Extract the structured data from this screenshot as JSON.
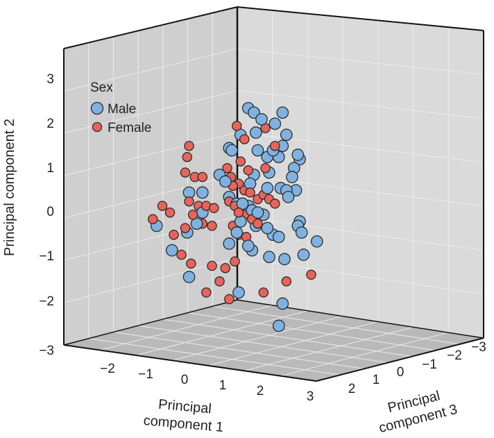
{
  "chart_data": {
    "type": "scatter",
    "projection": "3d",
    "colors": {
      "Male": "#7fb2e0",
      "Female": "#e8645a",
      "marker_edge": "#2b2b2b"
    },
    "axes": {
      "x": {
        "label": "Principal component 1",
        "label_line1": "Principal",
        "label_line2": "component 1",
        "range": [
          -3,
          3
        ],
        "ticks": [
          "−2",
          "−1",
          "0",
          "1",
          "2",
          "3"
        ]
      },
      "y": {
        "label": "Principal component 2",
        "range": [
          -3,
          3.5
        ],
        "ticks": [
          "3",
          "2",
          "1",
          "0",
          "−1",
          "−2",
          "−3"
        ]
      },
      "z": {
        "label": "Principal component 3",
        "label_line1": "Principal",
        "label_line2": "component 3",
        "range": [
          -3,
          3
        ],
        "ticks": [
          "2",
          "1",
          "0",
          "−1",
          "−2",
          "−3"
        ]
      }
    },
    "legend": {
      "title": "Sex",
      "entries": [
        "Male",
        "Female"
      ],
      "position": "top-left"
    },
    "series": [
      {
        "name": "Male",
        "points": [
          [
            1.05,
            2.3
          ],
          [
            1.2,
            2.2
          ],
          [
            1.4,
            2.05
          ],
          [
            1.25,
            1.75
          ],
          [
            1.95,
            2.2
          ],
          [
            2.05,
            1.7
          ],
          [
            1.75,
            1.95
          ],
          [
            0.85,
            1.7
          ],
          [
            0.55,
            1.4
          ],
          [
            0.62,
            1.35
          ],
          [
            1.3,
            1.35
          ],
          [
            1.55,
            1.2
          ],
          [
            1.7,
            1.35
          ],
          [
            1.95,
            1.45
          ],
          [
            1.85,
            1.2
          ],
          [
            2.35,
            1.25
          ],
          [
            2.4,
            1.15
          ],
          [
            2.25,
            0.95
          ],
          [
            2.2,
            0.75
          ],
          [
            1.6,
            0.85
          ],
          [
            1.2,
            0.8
          ],
          [
            1.1,
            0.6
          ],
          [
            1.55,
            0.5
          ],
          [
            1.9,
            0.5
          ],
          [
            2.05,
            0.45
          ],
          [
            2.1,
            0.3
          ],
          [
            2.3,
            0.45
          ],
          [
            0.3,
            0.8
          ],
          [
            0.45,
            0.65
          ],
          [
            0.55,
            0.3
          ],
          [
            0.75,
            0.15
          ],
          [
            0.9,
            0.15
          ],
          [
            1.05,
            0.1
          ],
          [
            1.15,
            0.0
          ],
          [
            1.3,
            -0.05
          ],
          [
            1.45,
            -0.1
          ],
          [
            1.25,
            -0.35
          ],
          [
            1.55,
            -0.4
          ],
          [
            1.7,
            -0.55
          ],
          [
            1.85,
            -0.6
          ],
          [
            2.35,
            -0.35
          ],
          [
            2.45,
            -0.5
          ],
          [
            2.4,
            -0.25
          ],
          [
            2.85,
            -0.7
          ],
          [
            2.5,
            -1.0
          ],
          [
            2.0,
            -1.1
          ],
          [
            1.6,
            -1.05
          ],
          [
            1.05,
            -0.8
          ],
          [
            1.15,
            -0.9
          ],
          [
            0.55,
            -0.75
          ],
          [
            0.75,
            -0.5
          ],
          [
            -0.15,
            -0.05
          ],
          [
            -0.3,
            -0.3
          ],
          [
            -0.55,
            -0.5
          ],
          [
            -0.15,
            0.4
          ],
          [
            -0.5,
            0.4
          ],
          [
            -0.95,
            -0.9
          ],
          [
            -1.35,
            -0.35
          ],
          [
            -0.5,
            -1.5
          ],
          [
            0.8,
            -1.85
          ],
          [
            1.95,
            -2.1
          ],
          [
            1.85,
            -2.6
          ],
          [
            0.85,
            -0.25
          ]
        ]
      },
      {
        "name": "Female",
        "points": [
          [
            0.75,
            1.9
          ],
          [
            0.95,
            1.6
          ],
          [
            1.5,
            1.85
          ],
          [
            1.75,
            1.45
          ],
          [
            0.85,
            1.1
          ],
          [
            1.05,
            0.9
          ],
          [
            1.5,
            0.95
          ],
          [
            0.5,
            0.95
          ],
          [
            0.6,
            0.75
          ],
          [
            0.65,
            0.55
          ],
          [
            0.8,
            0.6
          ],
          [
            0.95,
            0.45
          ],
          [
            1.1,
            0.4
          ],
          [
            1.3,
            0.25
          ],
          [
            1.45,
            0.35
          ],
          [
            1.6,
            0.25
          ],
          [
            1.75,
            0.15
          ],
          [
            0.55,
            0.2
          ],
          [
            0.7,
            0.1
          ],
          [
            0.8,
            -0.05
          ],
          [
            0.95,
            -0.1
          ],
          [
            1.15,
            -0.2
          ],
          [
            1.3,
            -0.3
          ],
          [
            0.65,
            -0.35
          ],
          [
            0.8,
            -0.55
          ],
          [
            1.0,
            -0.6
          ],
          [
            -0.5,
            1.45
          ],
          [
            -0.55,
            1.2
          ],
          [
            -0.6,
            0.85
          ],
          [
            -0.35,
            0.75
          ],
          [
            -0.15,
            0.75
          ],
          [
            -0.5,
            0.2
          ],
          [
            -0.25,
            0.1
          ],
          [
            -0.05,
            0.1
          ],
          [
            0.15,
            0.05
          ],
          [
            -0.4,
            -0.1
          ],
          [
            -0.15,
            -0.3
          ],
          [
            0.1,
            -0.35
          ],
          [
            -0.6,
            -0.4
          ],
          [
            -1.0,
            -0.05
          ],
          [
            -1.2,
            0.1
          ],
          [
            -0.9,
            -0.55
          ],
          [
            -1.45,
            -0.2
          ],
          [
            -0.7,
            -1.0
          ],
          [
            -0.45,
            -1.2
          ],
          [
            0.1,
            -1.25
          ],
          [
            0.45,
            -1.3
          ],
          [
            0.7,
            -1.15
          ],
          [
            0.3,
            -1.6
          ],
          [
            -0.05,
            -1.85
          ],
          [
            0.55,
            -2.0
          ],
          [
            1.45,
            -1.85
          ],
          [
            2.05,
            -1.6
          ],
          [
            2.7,
            -1.45
          ]
        ]
      }
    ]
  }
}
